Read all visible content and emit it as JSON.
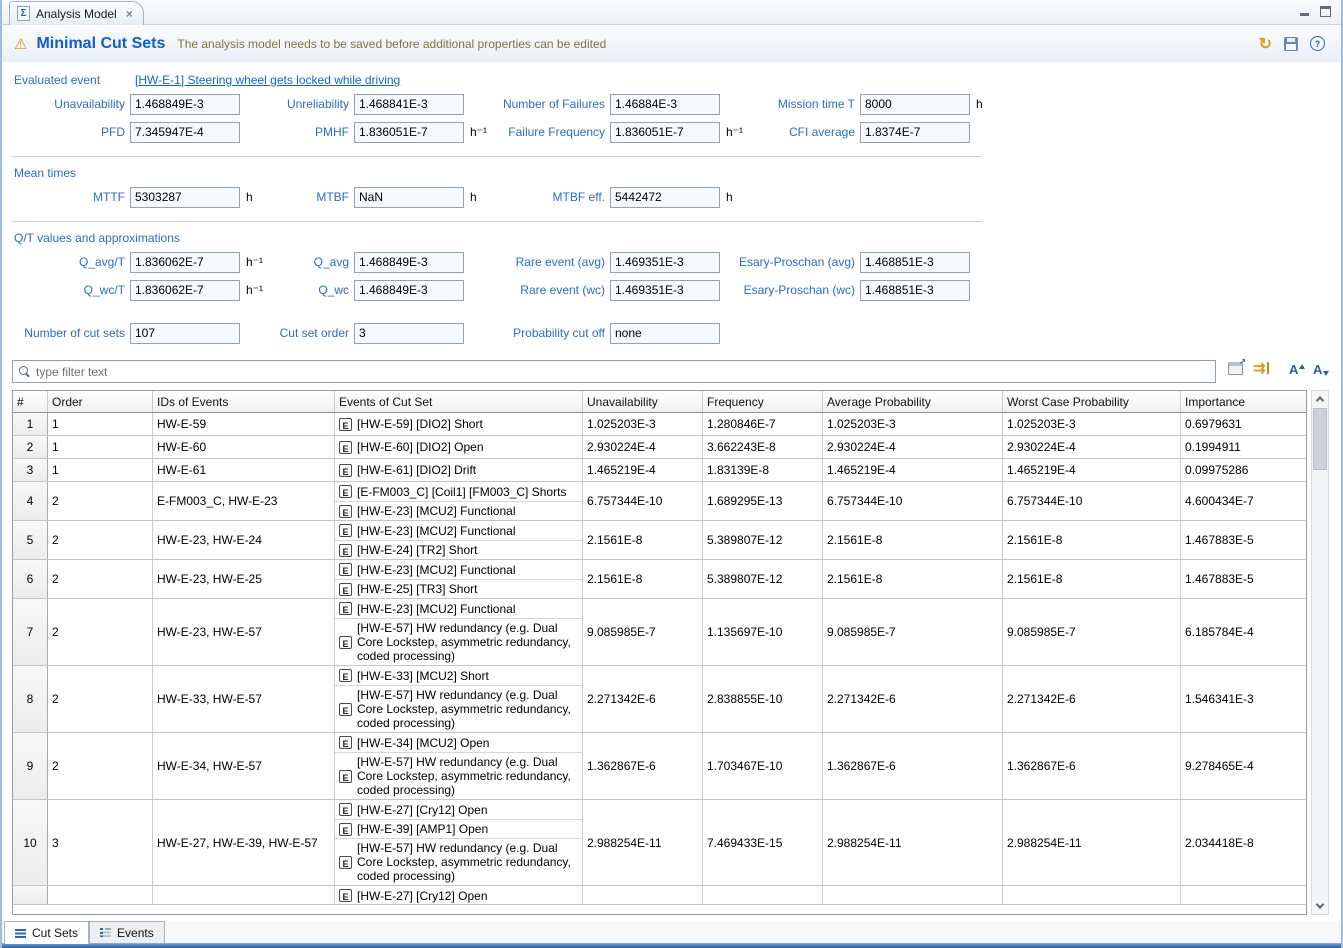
{
  "window": {
    "tab_label": "Analysis Model",
    "bottom_tabs": [
      {
        "label": "Cut Sets"
      },
      {
        "label": "Events"
      }
    ]
  },
  "icons": {
    "sigma": "Σ",
    "close": "×",
    "warning": "⚠",
    "refresh": "↻",
    "help": "?",
    "paired_arrows": "⇉",
    "font_letter": "A"
  },
  "header": {
    "title": "Minimal Cut Sets",
    "message": "The analysis model needs to be saved before additional properties can be edited"
  },
  "summary": {
    "evaluated_event_label": "Evaluated event",
    "evaluated_event_link": "[HW-E-1] Steering wheel gets locked while driving",
    "fields": {
      "unavailability": {
        "label": "Unavailability",
        "value": "1.468849E-3"
      },
      "unreliability": {
        "label": "Unreliability",
        "value": "1.468841E-3"
      },
      "number_of_failures": {
        "label": "Number of Failures",
        "value": "1.46884E-3"
      },
      "mission_time": {
        "label": "Mission time T",
        "value": "8000",
        "unit": "h"
      },
      "pfd": {
        "label": "PFD",
        "value": "7.345947E-4"
      },
      "pmhf": {
        "label": "PMHF",
        "value": "1.836051E-7",
        "unit": "h⁻¹"
      },
      "failure_frequency": {
        "label": "Failure Frequency",
        "value": "1.836051E-7",
        "unit": "h⁻¹"
      },
      "cfi_average": {
        "label": "CFI average",
        "value": "1.8374E-7"
      }
    }
  },
  "mean_times": {
    "title": "Mean times",
    "fields": {
      "mttf": {
        "label": "MTTF",
        "value": "5303287",
        "unit": "h"
      },
      "mtbf": {
        "label": "MTBF",
        "value": "NaN",
        "unit": "h"
      },
      "mtbf_eff": {
        "label": "MTBF eff.",
        "value": "5442472",
        "unit": "h"
      }
    }
  },
  "qt": {
    "title": "Q/T values and approximations",
    "fields": {
      "q_avg_t": {
        "label": "Q_avg/T",
        "value": "1.836062E-7",
        "unit": "h⁻¹"
      },
      "q_avg": {
        "label": "Q_avg",
        "value": "1.468849E-3"
      },
      "rare_avg": {
        "label": "Rare event (avg)",
        "value": "1.469351E-3"
      },
      "esary_avg": {
        "label": "Esary-Proschan (avg)",
        "value": "1.468851E-3"
      },
      "q_wc_t": {
        "label": "Q_wc/T",
        "value": "1.836062E-7",
        "unit": "h⁻¹"
      },
      "q_wc": {
        "label": "Q_wc",
        "value": "1.468849E-3"
      },
      "rare_wc": {
        "label": "Rare event (wc)",
        "value": "1.469351E-3"
      },
      "esary_wc": {
        "label": "Esary-Proschan (wc)",
        "value": "1.468851E-3"
      }
    }
  },
  "cutset_info": {
    "number_of_cut_sets": {
      "label": "Number of cut sets",
      "value": "107"
    },
    "cut_set_order": {
      "label": "Cut set order",
      "value": "3"
    },
    "probability_cut_off": {
      "label": "Probability cut off",
      "value": "none"
    }
  },
  "filter": {
    "placeholder": "type filter text"
  },
  "table": {
    "event_badge": "E",
    "columns": [
      "#",
      "Order",
      "IDs of Events",
      "Events of Cut Set",
      "Unavailability",
      "Frequency",
      "Average Probability",
      "Worst Case Probability",
      "Importance"
    ],
    "rows": [
      {
        "num": "1",
        "order": "1",
        "ids": "HW-E-59",
        "events": [
          "[HW-E-59] [DIO2] Short"
        ],
        "unavailability": "1.025203E-3",
        "frequency": "1.280846E-7",
        "avg": "1.025203E-3",
        "wc": "1.025203E-3",
        "importance": "0.6979631"
      },
      {
        "num": "2",
        "order": "1",
        "ids": "HW-E-60",
        "events": [
          "[HW-E-60] [DIO2] Open"
        ],
        "unavailability": "2.930224E-4",
        "frequency": "3.662243E-8",
        "avg": "2.930224E-4",
        "wc": "2.930224E-4",
        "importance": "0.1994911"
      },
      {
        "num": "3",
        "order": "1",
        "ids": "HW-E-61",
        "events": [
          "[HW-E-61] [DIO2] Drift"
        ],
        "unavailability": "1.465219E-4",
        "frequency": "1.83139E-8",
        "avg": "1.465219E-4",
        "wc": "1.465219E-4",
        "importance": "0.09975286"
      },
      {
        "num": "4",
        "order": "2",
        "ids": "E-FM003_C, HW-E-23",
        "events": [
          "[E-FM003_C] [Coil1] [FM003_C] Shorts",
          "[HW-E-23] [MCU2] Functional"
        ],
        "unavailability": "6.757344E-10",
        "frequency": "1.689295E-13",
        "avg": "6.757344E-10",
        "wc": "6.757344E-10",
        "importance": "4.600434E-7"
      },
      {
        "num": "5",
        "order": "2",
        "ids": "HW-E-23, HW-E-24",
        "events": [
          "[HW-E-23] [MCU2] Functional",
          "[HW-E-24] [TR2] Short"
        ],
        "unavailability": "2.1561E-8",
        "frequency": "5.389807E-12",
        "avg": "2.1561E-8",
        "wc": "2.1561E-8",
        "importance": "1.467883E-5"
      },
      {
        "num": "6",
        "order": "2",
        "ids": "HW-E-23, HW-E-25",
        "events": [
          "[HW-E-23] [MCU2] Functional",
          "[HW-E-25] [TR3] Short"
        ],
        "unavailability": "2.1561E-8",
        "frequency": "5.389807E-12",
        "avg": "2.1561E-8",
        "wc": "2.1561E-8",
        "importance": "1.467883E-5"
      },
      {
        "num": "7",
        "order": "2",
        "ids": "HW-E-23, HW-E-57",
        "events": [
          "[HW-E-23] [MCU2] Functional",
          "[HW-E-57] HW redundancy (e.g. Dual Core Lockstep, asymmetric redundancy, coded processing)"
        ],
        "unavailability": "9.085985E-7",
        "frequency": "1.135697E-10",
        "avg": "9.085985E-7",
        "wc": "9.085985E-7",
        "importance": "6.185784E-4"
      },
      {
        "num": "8",
        "order": "2",
        "ids": "HW-E-33, HW-E-57",
        "events": [
          "[HW-E-33] [MCU2] Short",
          "[HW-E-57] HW redundancy (e.g. Dual Core Lockstep, asymmetric redundancy, coded processing)"
        ],
        "unavailability": "2.271342E-6",
        "frequency": "2.838855E-10",
        "avg": "2.271342E-6",
        "wc": "2.271342E-6",
        "importance": "1.546341E-3"
      },
      {
        "num": "9",
        "order": "2",
        "ids": "HW-E-34, HW-E-57",
        "events": [
          "[HW-E-34] [MCU2] Open",
          "[HW-E-57] HW redundancy (e.g. Dual Core Lockstep, asymmetric redundancy, coded processing)"
        ],
        "unavailability": "1.362867E-6",
        "frequency": "1.703467E-10",
        "avg": "1.362867E-6",
        "wc": "1.362867E-6",
        "importance": "9.278465E-4"
      },
      {
        "num": "10",
        "order": "3",
        "ids": "HW-E-27, HW-E-39, HW-E-57",
        "events": [
          "[HW-E-27] [Cry12] Open",
          "[HW-E-39] [AMP1] Open",
          "[HW-E-57] HW redundancy (e.g. Dual Core Lockstep, asymmetric redundancy, coded processing)"
        ],
        "unavailability": "2.988254E-11",
        "frequency": "7.469433E-15",
        "avg": "2.988254E-11",
        "wc": "2.988254E-11",
        "importance": "2.034418E-8"
      },
      {
        "num": "",
        "order": "",
        "ids": "",
        "events": [
          "[HW-E-27] [Cry12] Open"
        ],
        "unavailability": "",
        "frequency": "",
        "avg": "",
        "wc": "",
        "importance": "",
        "partial": true
      }
    ]
  }
}
